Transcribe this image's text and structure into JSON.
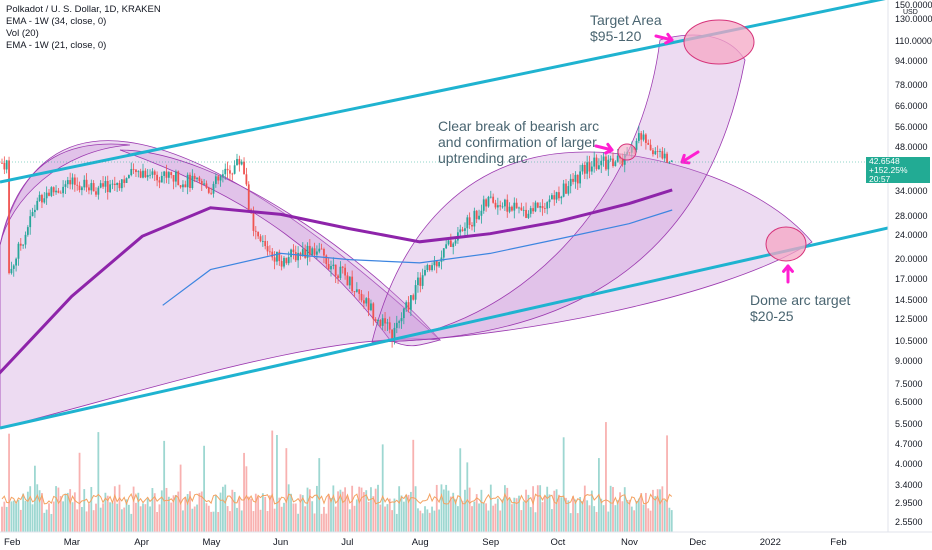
{
  "header": {
    "symbol_line": "Polkadot / U. S. Dollar, 1D, KRAKEN",
    "ema_34": "EMA - 1W (34, close, 0)",
    "vol": "Vol (20)",
    "ema_21": "EMA - 1W (21, close, 0)"
  },
  "annotations": {
    "target_area_1": "Target Area",
    "target_area_2": "$95-120",
    "break_1": "Clear break of bearish arc",
    "break_2": "and confirmation of larger",
    "break_3": "uptrending arc",
    "dome_1": "Dome arc target",
    "dome_2": "$20-25"
  },
  "price_tag": {
    "price": "42.6548",
    "change": "+152.25%",
    "countdown": "20:57"
  },
  "axis": {
    "unit": "USD",
    "y_ticks": [
      "150.0000",
      "130.0000",
      "110.0000",
      "94.0000",
      "78.0000",
      "66.0000",
      "56.0000",
      "48.0000",
      "34.0000",
      "28.0000",
      "24.0000",
      "20.0000",
      "17.0000",
      "14.5000",
      "12.5000",
      "10.5000",
      "9.0000",
      "7.5000",
      "6.5000",
      "5.5000",
      "4.7000",
      "4.0000",
      "3.4000",
      "2.9500",
      "2.5500"
    ],
    "x_ticks": [
      "Feb",
      "Mar",
      "Apr",
      "May",
      "Jun",
      "Jul",
      "Aug",
      "Sep",
      "Oct",
      "Nov",
      "Dec",
      "2022",
      "Feb"
    ]
  },
  "colors": {
    "channel": "#1fb3d0",
    "arc_fill": "#c88fd6",
    "arc_stroke": "#9c3ab0",
    "ema_long": "#8e24aa",
    "ema_short": "#3d85e0",
    "up": "#26a69a",
    "down": "#ef5350",
    "arrow": "#ff1fd1",
    "ellipse_fill": "#f4a7c4",
    "ellipse_stroke": "#d6337a"
  },
  "chart_data": {
    "type": "candlestick",
    "title": "Polkadot / U. S. Dollar, 1D, KRAKEN",
    "y_scale": "log",
    "ylim": [
      2.5,
      150
    ],
    "x_range": [
      "2021-01-28",
      "2022-02-20"
    ],
    "series": [
      {
        "name": "Price (approx. weekly closes)",
        "x": [
          "2021-02-01",
          "2021-02-15",
          "2021-03-01",
          "2021-03-15",
          "2021-04-01",
          "2021-04-15",
          "2021-05-01",
          "2021-05-15",
          "2021-05-20",
          "2021-06-01",
          "2021-06-15",
          "2021-07-01",
          "2021-07-20",
          "2021-08-01",
          "2021-08-15",
          "2021-09-01",
          "2021-09-15",
          "2021-10-01",
          "2021-10-15",
          "2021-11-01",
          "2021-11-05",
          "2021-11-15",
          "2021-11-20"
        ],
        "values": [
          17.5,
          33.0,
          36.0,
          35.0,
          40.0,
          38.0,
          35.0,
          44.0,
          24.0,
          20.0,
          22.0,
          17.0,
          11.0,
          17.0,
          23.0,
          32.0,
          29.0,
          33.0,
          42.0,
          44.0,
          53.0,
          45.0,
          42.65
        ]
      },
      {
        "name": "EMA - 1W (34, close, 0)",
        "x": [
          "2021-01-28",
          "2021-03-01",
          "2021-04-01",
          "2021-05-01",
          "2021-06-01",
          "2021-07-01",
          "2021-08-01",
          "2021-09-01",
          "2021-10-01",
          "2021-11-01",
          "2021-11-20"
        ],
        "values": [
          8.2,
          15.0,
          24.0,
          30.0,
          28.5,
          25.5,
          23.0,
          24.5,
          27.0,
          31.0,
          34.5
        ]
      },
      {
        "name": "EMA - 1W (21, close, 0)",
        "x": [
          "2021-04-10",
          "2021-05-01",
          "2021-06-01",
          "2021-07-01",
          "2021-08-01",
          "2021-09-01",
          "2021-10-01",
          "2021-11-01",
          "2021-11-20"
        ],
        "values": [
          14.0,
          18.5,
          21.0,
          20.0,
          19.5,
          21.0,
          23.5,
          26.5,
          29.5
        ]
      }
    ],
    "volume": {
      "name": "Vol (20)",
      "note": "volume histogram shown along bottom; spikes mid-May and mid-Nov"
    },
    "annotations": [
      {
        "text": "Target Area $95-120",
        "y_range": [
          95,
          120
        ]
      },
      {
        "text": "Dome arc target $20-25",
        "y_range": [
          20,
          25
        ]
      },
      {
        "text": "Clear break of bearish arc and confirmation of larger uptrending arc"
      }
    ]
  }
}
